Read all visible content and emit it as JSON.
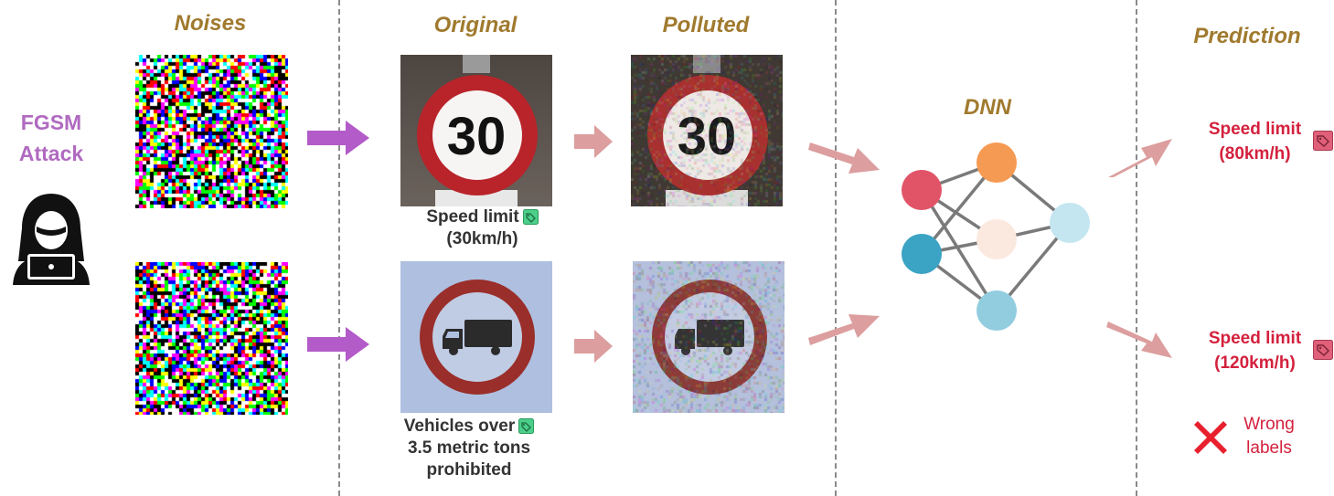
{
  "headers": {
    "noises": "Noises",
    "original": "Original",
    "polluted": "Polluted",
    "dnn": "DNN",
    "prediction": "Prediction"
  },
  "attack": {
    "line1": "FGSM",
    "line2": "Attack"
  },
  "original_labels": {
    "top": {
      "line1": "Speed limit",
      "line2": "(30km/h)"
    },
    "bottom": {
      "line1": "Vehicles over",
      "line2": "3.5 metric tons",
      "line3": "prohibited"
    }
  },
  "sign_number": "30",
  "predictions": {
    "top": {
      "line1": "Speed limit",
      "line2": "(80km/h)"
    },
    "bottom": {
      "line1": "Speed limit",
      "line2": "(120km/h)"
    }
  },
  "legend": {
    "line1": "Wrong",
    "line2": "labels"
  },
  "colors": {
    "header": "#a07a2e",
    "attack": "#b06ac0",
    "prediction": "#d4213d",
    "arrow_purple": "#b35bc9",
    "arrow_pink": "#dc9e9e",
    "correct_tag": "#4ccf8a",
    "wrong_tag": "#e0607a"
  }
}
